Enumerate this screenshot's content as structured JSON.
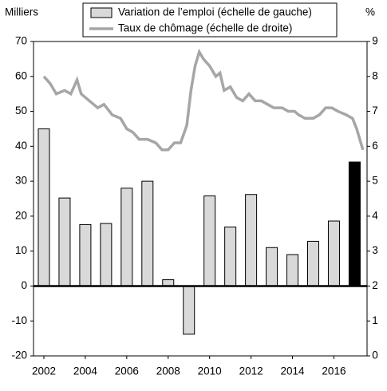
{
  "chart_data": {
    "type": "bar-line",
    "y_label": "Milliers",
    "y2_label": "%",
    "xlim": [
      2001.5,
      2017.6
    ],
    "xticks": [
      2002,
      2004,
      2006,
      2008,
      2010,
      2012,
      2014,
      2016
    ],
    "ylim": [
      -20,
      70
    ],
    "yticks": [
      -20,
      -10,
      0,
      10,
      20,
      30,
      40,
      50,
      60,
      70
    ],
    "y2lim": [
      0,
      9
    ],
    "y2ticks": [
      0,
      1,
      2,
      3,
      4,
      5,
      6,
      7,
      8,
      9
    ],
    "series": [
      {
        "name": "Variation de l’emploi (échelle de gauche)",
        "type": "bar",
        "color": "#d9d9d9",
        "colors": [
          "#d9d9d9",
          "#d9d9d9",
          "#d9d9d9",
          "#d9d9d9",
          "#d9d9d9",
          "#d9d9d9",
          "#d9d9d9",
          "#d9d9d9",
          "#d9d9d9",
          "#d9d9d9",
          "#d9d9d9",
          "#d9d9d9",
          "#d9d9d9",
          "#d9d9d9",
          "#d9d9d9",
          "#000000"
        ],
        "x": [
          2002,
          2003,
          2004,
          2005,
          2006,
          2007,
          2008,
          2009,
          2010,
          2011,
          2012,
          2013,
          2014,
          2015,
          2016,
          2017
        ],
        "values": [
          45,
          25.2,
          17.6,
          17.9,
          28,
          30,
          1.8,
          -13.8,
          25.8,
          16.9,
          26.2,
          11,
          9,
          12.8,
          18.6,
          35.5
        ]
      },
      {
        "name": "Taux de chômage (échelle de droite)",
        "type": "line",
        "color": "#a6a6a6",
        "axis": "y2",
        "x": [
          2002.0,
          2002.3,
          2002.6,
          2003.0,
          2003.3,
          2003.6,
          2003.8,
          2004.2,
          2004.6,
          2004.9,
          2005.3,
          2005.7,
          2006.0,
          2006.3,
          2006.6,
          2007.0,
          2007.4,
          2007.7,
          2008.0,
          2008.3,
          2008.6,
          2008.9,
          2009.1,
          2009.3,
          2009.5,
          2009.7,
          2010.0,
          2010.3,
          2010.5,
          2010.7,
          2011.0,
          2011.3,
          2011.6,
          2011.9,
          2012.2,
          2012.5,
          2012.8,
          2013.1,
          2013.5,
          2013.8,
          2014.1,
          2014.3,
          2014.6,
          2015.0,
          2015.3,
          2015.6,
          2015.9,
          2016.2,
          2016.6,
          2016.9,
          2017.1,
          2017.3,
          2017.4
        ],
        "values": [
          8.0,
          7.8,
          7.5,
          7.6,
          7.5,
          7.9,
          7.5,
          7.3,
          7.1,
          7.2,
          6.9,
          6.8,
          6.5,
          6.4,
          6.2,
          6.2,
          6.1,
          5.9,
          5.9,
          6.1,
          6.1,
          6.6,
          7.6,
          8.3,
          8.7,
          8.5,
          8.3,
          8.0,
          8.1,
          7.6,
          7.7,
          7.4,
          7.3,
          7.5,
          7.3,
          7.3,
          7.2,
          7.1,
          7.1,
          7.0,
          7.0,
          6.9,
          6.8,
          6.8,
          6.9,
          7.1,
          7.1,
          7.0,
          6.9,
          6.8,
          6.5,
          6.1,
          5.9
        ]
      }
    ]
  }
}
